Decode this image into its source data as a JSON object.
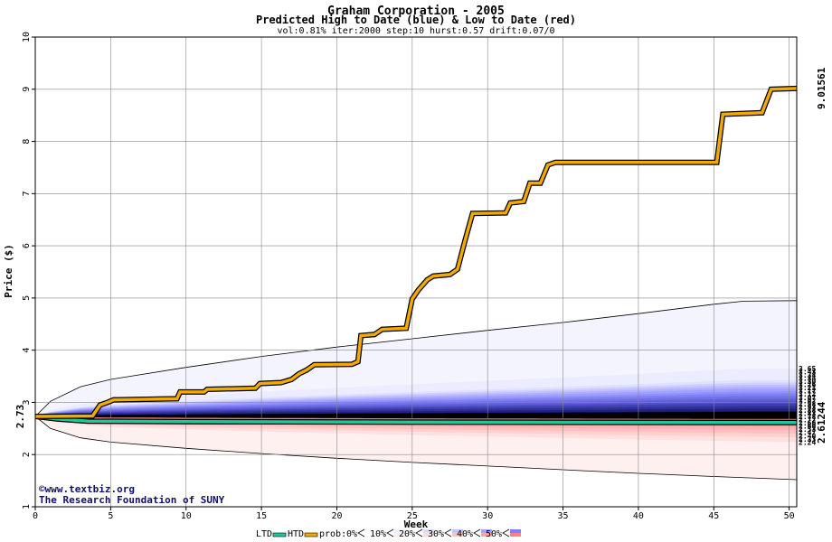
{
  "colors": {
    "htd_line": "#f2a900",
    "ltd_line": "#1ec89a",
    "start_label": "#1a8a2a",
    "end_low_label": "#1a8a2a",
    "end_high_label": "#b07800",
    "credit": "#10106a",
    "grid": "#888888"
  },
  "chart_data": {
    "type": "line",
    "title": "Graham Corporation - 2005",
    "subtitle": "Predicted High to Date (blue) &  Low to Date (red)",
    "params": "vol:0.81% iter:2000 step:10 hurst:0.57 drift:0.07/0",
    "xlabel": "Week",
    "ylabel": "Price ($)",
    "xlim": [
      0,
      50.5
    ],
    "ylim": [
      1,
      10
    ],
    "x_ticks": [
      "0",
      "5",
      "10",
      "15",
      "20",
      "25",
      "30",
      "35",
      "40",
      "45",
      "50"
    ],
    "y_ticks": [
      "1",
      "2",
      "3",
      "4",
      "5",
      "6",
      "7",
      "8",
      "9",
      "10"
    ],
    "grid": true,
    "start_value": "2.73",
    "end_high_value": "9.01561",
    "end_low_value": "2.61244",
    "band_end_labels": [
      "3.65",
      "3.43",
      "3.38",
      "3.34",
      "3.30",
      "3.26",
      "3.21",
      "3.17",
      "3.12",
      "3.07",
      "3.02",
      "2.98",
      "2.93",
      "2.88",
      "2.83",
      "2.78",
      "2.72",
      "2.66",
      "2.60",
      "2.53",
      "2.47",
      "2.40",
      "2.33",
      "2.24"
    ],
    "envelope_upper": [
      [
        0,
        2.73
      ],
      [
        1,
        3.02
      ],
      [
        3,
        3.3
      ],
      [
        5,
        3.44
      ],
      [
        10,
        3.67
      ],
      [
        15,
        3.88
      ],
      [
        20,
        4.06
      ],
      [
        25,
        4.22
      ],
      [
        30,
        4.38
      ],
      [
        35,
        4.53
      ],
      [
        40,
        4.7
      ],
      [
        45,
        4.88
      ],
      [
        47,
        4.94
      ],
      [
        50.5,
        4.95
      ]
    ],
    "envelope_lower": [
      [
        0,
        2.73
      ],
      [
        1,
        2.5
      ],
      [
        3,
        2.32
      ],
      [
        5,
        2.24
      ],
      [
        10,
        2.12
      ],
      [
        15,
        2.02
      ],
      [
        20,
        1.93
      ],
      [
        25,
        1.85
      ],
      [
        30,
        1.78
      ],
      [
        35,
        1.71
      ],
      [
        40,
        1.64
      ],
      [
        45,
        1.58
      ],
      [
        50.5,
        1.52
      ]
    ],
    "series": [
      {
        "name": "HTD",
        "values": [
          [
            0,
            2.73
          ],
          [
            3.8,
            2.74
          ],
          [
            4.3,
            2.95
          ],
          [
            4.8,
            3.0
          ],
          [
            5.2,
            3.05
          ],
          [
            9.4,
            3.07
          ],
          [
            9.6,
            3.2
          ],
          [
            11.2,
            3.2
          ],
          [
            11.4,
            3.25
          ],
          [
            14.6,
            3.27
          ],
          [
            14.9,
            3.36
          ],
          [
            16.3,
            3.38
          ],
          [
            17,
            3.44
          ],
          [
            17.5,
            3.55
          ],
          [
            18,
            3.62
          ],
          [
            18.5,
            3.72
          ],
          [
            21,
            3.73
          ],
          [
            21.4,
            3.78
          ],
          [
            21.6,
            4.28
          ],
          [
            22.5,
            4.3
          ],
          [
            23,
            4.4
          ],
          [
            24.6,
            4.42
          ],
          [
            25,
            4.98
          ],
          [
            25.4,
            5.15
          ],
          [
            26,
            5.35
          ],
          [
            26.4,
            5.42
          ],
          [
            27.5,
            5.45
          ],
          [
            28,
            5.55
          ],
          [
            28.5,
            6.1
          ],
          [
            29,
            6.62
          ],
          [
            31.2,
            6.63
          ],
          [
            31.5,
            6.82
          ],
          [
            32.4,
            6.85
          ],
          [
            32.8,
            7.2
          ],
          [
            33.5,
            7.2
          ],
          [
            34,
            7.55
          ],
          [
            34.5,
            7.6
          ],
          [
            45.2,
            7.6
          ],
          [
            45.6,
            8.52
          ],
          [
            48.2,
            8.55
          ],
          [
            48.8,
            9.0
          ],
          [
            50.5,
            9.01561
          ]
        ]
      },
      {
        "name": "LTD",
        "values": [
          [
            0,
            2.73
          ],
          [
            1.5,
            2.68
          ],
          [
            3.5,
            2.64
          ],
          [
            10,
            2.63
          ],
          [
            30,
            2.62
          ],
          [
            50.5,
            2.61244
          ]
        ]
      }
    ]
  },
  "credit": {
    "copyright_symbol": "©",
    "site": "www.textbiz.org",
    "org": "The Research Foundation of SUNY"
  },
  "legend": {
    "ltd": "LTD",
    "htd": "HTD",
    "prob_prefix": "prob:",
    "items": [
      "0%",
      "10%",
      "20%",
      "30%",
      "40%",
      "50%"
    ],
    "swatches": [
      "#ffffff",
      "#f0f0ff",
      "#dcdcff",
      "#c4c4ff",
      "#a4a4ff",
      "#8080ff"
    ],
    "swatches_low": [
      "#ffffff",
      "#fff0f0",
      "#ffdcdc",
      "#ffc4c4",
      "#ffa4a4",
      "#ff8080"
    ]
  }
}
